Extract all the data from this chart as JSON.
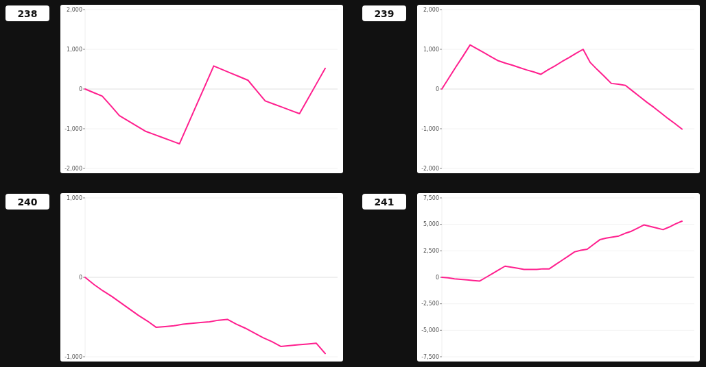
{
  "chart_data": [
    {
      "type": "line",
      "title": "238",
      "categories": [
        null,
        null,
        null,
        null,
        null,
        null,
        null,
        null,
        null,
        null,
        null,
        null,
        null,
        null,
        null,
        null,
        null,
        null,
        null,
        null,
        null,
        null,
        null,
        null,
        null,
        null,
        null,
        null,
        null
      ],
      "series": [
        {
          "color": "#ff1f8e",
          "values": [
            0,
            -90,
            -180,
            -420,
            -670,
            -800,
            -930,
            -1060,
            -1140,
            -1220,
            -1300,
            -1380,
            -890,
            -400,
            90,
            580,
            490,
            400,
            310,
            220,
            -40,
            -300,
            -380,
            -460,
            -540,
            -620,
            -240,
            140,
            520
          ]
        }
      ],
      "ylim": [
        -2000,
        2000
      ],
      "yticks": [
        {
          "value": -2000,
          "label": "-2,000"
        },
        {
          "value": -1000,
          "label": "-1,000"
        },
        {
          "value": 0,
          "label": "0"
        },
        {
          "value": 1000,
          "label": "1,000"
        },
        {
          "value": 2000,
          "label": "2,000"
        }
      ],
      "grid": "y",
      "tick_labels": "y",
      "marker": "none"
    },
    {
      "type": "line",
      "title": "239",
      "categories": [
        null,
        null,
        null,
        null,
        null,
        null,
        null,
        null,
        null,
        null,
        null,
        null,
        null,
        null,
        null,
        null,
        null,
        null,
        null,
        null,
        null,
        null,
        null,
        null,
        null,
        null,
        null,
        null,
        null,
        null,
        null,
        null,
        null,
        null,
        null
      ],
      "series": [
        {
          "color": "#ff1f8e",
          "values": [
            0,
            280,
            560,
            830,
            1110,
            1010,
            910,
            810,
            710,
            650,
            600,
            540,
            480,
            430,
            370,
            480,
            580,
            690,
            790,
            900,
            1000,
            670,
            490,
            320,
            140,
            120,
            90,
            -50,
            -190,
            -330,
            -460,
            -600,
            -740,
            -870,
            -1010
          ]
        }
      ],
      "ylim": [
        -2000,
        2000
      ],
      "yticks": [
        {
          "value": -2000,
          "label": "-2,000"
        },
        {
          "value": -1000,
          "label": "-1,000"
        },
        {
          "value": 0,
          "label": "0"
        },
        {
          "value": 1000,
          "label": "1,000"
        },
        {
          "value": 2000,
          "label": "2,000"
        }
      ],
      "grid": "y",
      "tick_labels": "y",
      "marker": "none"
    },
    {
      "type": "line",
      "title": "240",
      "categories": [
        null,
        null,
        null,
        null,
        null,
        null,
        null,
        null,
        null,
        null,
        null,
        null,
        null,
        null,
        null,
        null,
        null,
        null,
        null,
        null,
        null,
        null,
        null,
        null,
        null,
        null,
        null,
        null
      ],
      "series": [
        {
          "color": "#ff1f8e",
          "values": [
            0,
            -90,
            -170,
            -240,
            -320,
            -400,
            -480,
            -550,
            -630,
            -620,
            -610,
            -590,
            -580,
            -570,
            -560,
            -540,
            -530,
            -590,
            -640,
            -700,
            -760,
            -810,
            -870,
            -860,
            -850,
            -840,
            -830,
            -960
          ]
        }
      ],
      "ylim": [
        -1000,
        1000
      ],
      "yticks": [
        {
          "value": -1000,
          "label": "-1,000"
        },
        {
          "value": 0,
          "label": "0"
        },
        {
          "value": 1000,
          "label": "1,000"
        }
      ],
      "grid": "y",
      "tick_labels": "y",
      "marker": "none"
    },
    {
      "type": "line",
      "title": "241",
      "categories": [
        null,
        null,
        null,
        null,
        null,
        null,
        null,
        null,
        null,
        null,
        null,
        null,
        null,
        null,
        null,
        null,
        null,
        null,
        null,
        null,
        null,
        null,
        null,
        null,
        null,
        null,
        null,
        null,
        null,
        null,
        null,
        null,
        null,
        null,
        null,
        null,
        null,
        null,
        null
      ],
      "series": [
        {
          "color": "#ff1f8e",
          "values": [
            0,
            -50,
            -150,
            -200,
            -250,
            -300,
            -350,
            0,
            350,
            700,
            1050,
            950,
            850,
            750,
            750,
            750,
            800,
            800,
            1200,
            1600,
            2000,
            2400,
            2550,
            2650,
            3100,
            3550,
            3700,
            3800,
            3900,
            4150,
            4350,
            4650,
            4950,
            4800,
            4650,
            4500,
            4750,
            5050,
            5300
          ]
        }
      ],
      "ylim": [
        -7500,
        7500
      ],
      "yticks": [
        {
          "value": -7500,
          "label": "-7,500"
        },
        {
          "value": -5000,
          "label": "-5,000"
        },
        {
          "value": -2500,
          "label": "-2,500"
        },
        {
          "value": 0,
          "label": "0"
        },
        {
          "value": 2500,
          "label": "2,500"
        },
        {
          "value": 5000,
          "label": "5,000"
        },
        {
          "value": 7500,
          "label": "7,500"
        }
      ],
      "grid": "y",
      "tick_labels": "y",
      "marker": "none"
    }
  ]
}
